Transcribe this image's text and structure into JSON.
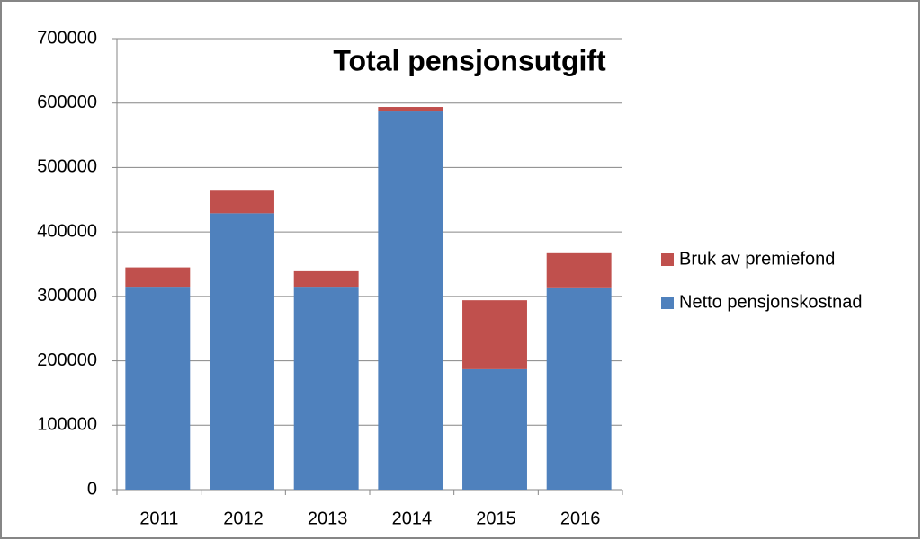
{
  "chart_data": {
    "type": "stacked_bar",
    "title": "Total pensjonsutgift",
    "categories": [
      "2011",
      "2012",
      "2013",
      "2014",
      "2015",
      "2016"
    ],
    "series": [
      {
        "name": "Netto pensjonskostnad",
        "color": "#4f81bd",
        "values": [
          315000,
          429000,
          315000,
          587000,
          187000,
          314000
        ]
      },
      {
        "name": "Bruk av premiefond",
        "color": "#c0504d",
        "values": [
          30000,
          35000,
          24000,
          7000,
          107000,
          53000
        ]
      }
    ],
    "ylim": [
      0,
      700000
    ],
    "yticks": [
      0,
      100000,
      200000,
      300000,
      400000,
      500000,
      600000,
      700000
    ],
    "grid": true,
    "legend": "right"
  }
}
